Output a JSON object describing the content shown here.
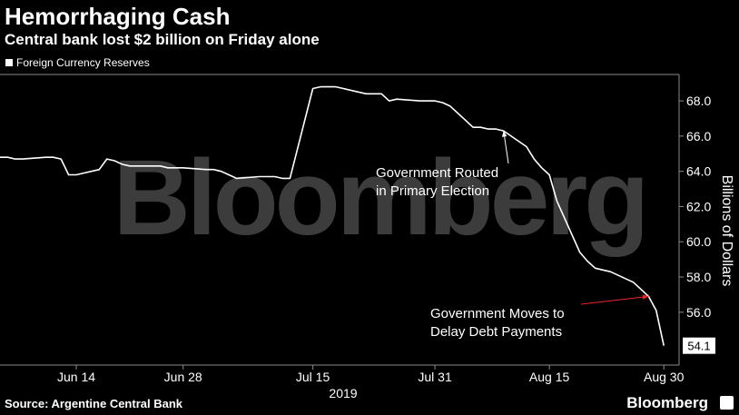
{
  "header": {
    "title": "Hemorrhaging Cash",
    "subtitle": "Central bank lost $2 billion on Friday alone"
  },
  "footer": {
    "source": "Source: Argentine Central Bank",
    "brand": "Bloomberg"
  },
  "watermark": "Bloomberg",
  "chart_data": {
    "type": "line",
    "title": "Hemorrhaging Cash",
    "subtitle": "Central bank lost $2 billion on Friday alone",
    "ylabel": "Billions of Dollars",
    "xlabel": "2019",
    "ylim": [
      53.0,
      69.5
    ],
    "xlim": [
      "2019-06-04",
      "2019-09-01"
    ],
    "legend": "top-left",
    "series": [
      {
        "name": "Foreign Currency Reserves",
        "color": "#ffffff",
        "points": [
          [
            "2019-06-04",
            64.8
          ],
          [
            "2019-06-05",
            64.8
          ],
          [
            "2019-06-06",
            64.7
          ],
          [
            "2019-06-07",
            64.7
          ],
          [
            "2019-06-10",
            64.8
          ],
          [
            "2019-06-11",
            64.8
          ],
          [
            "2019-06-12",
            64.7
          ],
          [
            "2019-06-13",
            63.8
          ],
          [
            "2019-06-14",
            63.8
          ],
          [
            "2019-06-17",
            64.1
          ],
          [
            "2019-06-18",
            64.7
          ],
          [
            "2019-06-19",
            64.6
          ],
          [
            "2019-06-20",
            64.4
          ],
          [
            "2019-06-21",
            64.3
          ],
          [
            "2019-06-24",
            64.3
          ],
          [
            "2019-06-25",
            64.3
          ],
          [
            "2019-06-26",
            64.2
          ],
          [
            "2019-06-27",
            64.2
          ],
          [
            "2019-06-28",
            64.2
          ],
          [
            "2019-07-01",
            64.1
          ],
          [
            "2019-07-02",
            64.1
          ],
          [
            "2019-07-03",
            64.0
          ],
          [
            "2019-07-04",
            63.8
          ],
          [
            "2019-07-05",
            63.6
          ],
          [
            "2019-07-08",
            63.7
          ],
          [
            "2019-07-09",
            63.7
          ],
          [
            "2019-07-10",
            63.7
          ],
          [
            "2019-07-11",
            63.6
          ],
          [
            "2019-07-12",
            63.6
          ],
          [
            "2019-07-15",
            68.7
          ],
          [
            "2019-07-16",
            68.8
          ],
          [
            "2019-07-17",
            68.8
          ],
          [
            "2019-07-18",
            68.8
          ],
          [
            "2019-07-19",
            68.7
          ],
          [
            "2019-07-22",
            68.4
          ],
          [
            "2019-07-23",
            68.4
          ],
          [
            "2019-07-24",
            68.4
          ],
          [
            "2019-07-25",
            68.0
          ],
          [
            "2019-07-26",
            68.1
          ],
          [
            "2019-07-29",
            68.0
          ],
          [
            "2019-07-30",
            68.0
          ],
          [
            "2019-07-31",
            68.0
          ],
          [
            "2019-08-01",
            67.9
          ],
          [
            "2019-08-02",
            67.7
          ],
          [
            "2019-08-05",
            66.5
          ],
          [
            "2019-08-06",
            66.5
          ],
          [
            "2019-08-07",
            66.4
          ],
          [
            "2019-08-08",
            66.4
          ],
          [
            "2019-08-09",
            66.3
          ],
          [
            "2019-08-12",
            65.4
          ],
          [
            "2019-08-13",
            64.7
          ],
          [
            "2019-08-14",
            64.2
          ],
          [
            "2019-08-15",
            63.8
          ],
          [
            "2019-08-16",
            62.3
          ],
          [
            "2019-08-19",
            59.4
          ],
          [
            "2019-08-20",
            58.9
          ],
          [
            "2019-08-21",
            58.5
          ],
          [
            "2019-08-22",
            58.4
          ],
          [
            "2019-08-23",
            58.3
          ],
          [
            "2019-08-26",
            57.7
          ],
          [
            "2019-08-27",
            57.3
          ],
          [
            "2019-08-28",
            56.9
          ],
          [
            "2019-08-29",
            56.1
          ],
          [
            "2019-08-30",
            54.1
          ]
        ]
      }
    ],
    "x_ticks": [
      {
        "date": "2019-06-14",
        "label": "Jun 14"
      },
      {
        "date": "2019-06-28",
        "label": "Jun 28"
      },
      {
        "date": "2019-07-15",
        "label": "Jul 15"
      },
      {
        "date": "2019-07-31",
        "label": "Jul 31"
      },
      {
        "date": "2019-08-15",
        "label": "Aug 15"
      },
      {
        "date": "2019-08-30",
        "label": "Aug 30"
      }
    ],
    "y_ticks": [
      {
        "value": 56,
        "label": "56.0"
      },
      {
        "value": 58,
        "label": "58.0"
      },
      {
        "value": 60,
        "label": "60.0"
      },
      {
        "value": 62,
        "label": "62.0"
      },
      {
        "value": 64,
        "label": "64.0"
      },
      {
        "value": 66,
        "label": "66.0"
      },
      {
        "value": 68,
        "label": "68.0"
      }
    ],
    "last_value_label": {
      "date": "2019-08-30",
      "value": 54.1,
      "label": "54.1"
    },
    "annotations": [
      {
        "lines": [
          "Government Routed",
          "in Primary Election"
        ],
        "date": "2019-08-09",
        "value": 66.3,
        "arrow_color": "#ffffff"
      },
      {
        "lines": [
          "Government Moves to",
          "Delay Debt Payments"
        ],
        "date": "2019-08-28",
        "value": 56.9,
        "arrow_color": "#e8252a"
      }
    ]
  }
}
